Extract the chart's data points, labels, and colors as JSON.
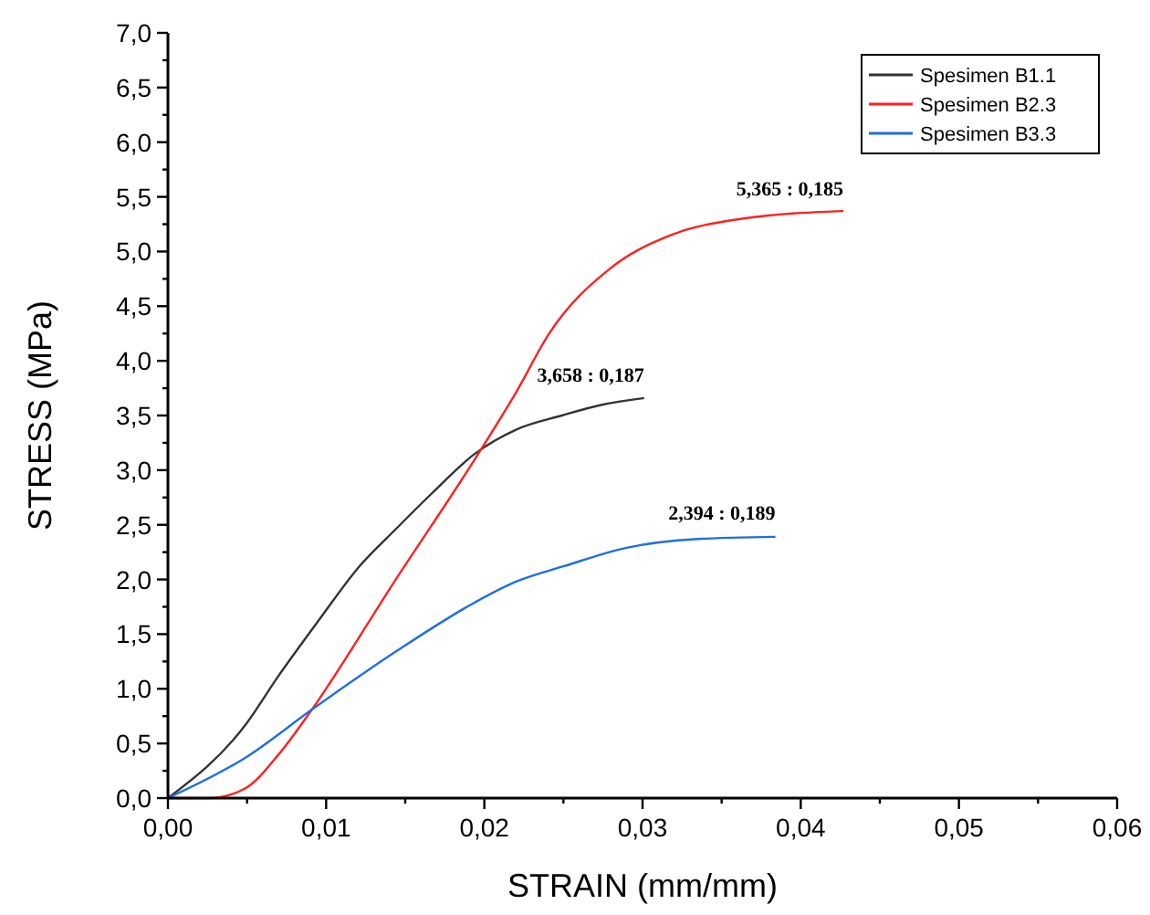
{
  "chart_data": {
    "type": "line",
    "xlabel": "STRAIN (mm/mm)",
    "ylabel": "STRESS (MPa)",
    "xlim": [
      0,
      0.06
    ],
    "ylim": [
      0,
      7
    ],
    "xticks": [
      {
        "value": 0,
        "label": "0,00"
      },
      {
        "value": 0.005,
        "label": null
      },
      {
        "value": 0.01,
        "label": "0,01"
      },
      {
        "value": 0.015,
        "label": null
      },
      {
        "value": 0.02,
        "label": "0,02"
      },
      {
        "value": 0.025,
        "label": null
      },
      {
        "value": 0.03,
        "label": "0,03"
      },
      {
        "value": 0.035,
        "label": null
      },
      {
        "value": 0.04,
        "label": "0,04"
      },
      {
        "value": 0.045,
        "label": null
      },
      {
        "value": 0.05,
        "label": "0,05"
      },
      {
        "value": 0.055,
        "label": null
      },
      {
        "value": 0.06,
        "label": "0,06"
      }
    ],
    "yticks": [
      {
        "value": 0,
        "label": "0,0"
      },
      {
        "value": 0.25,
        "label": null
      },
      {
        "value": 0.5,
        "label": "0,5"
      },
      {
        "value": 0.75,
        "label": null
      },
      {
        "value": 1,
        "label": "1,0"
      },
      {
        "value": 1.25,
        "label": null
      },
      {
        "value": 1.5,
        "label": "1,5"
      },
      {
        "value": 1.75,
        "label": null
      },
      {
        "value": 2,
        "label": "2,0"
      },
      {
        "value": 2.25,
        "label": null
      },
      {
        "value": 2.5,
        "label": "2,5"
      },
      {
        "value": 2.75,
        "label": null
      },
      {
        "value": 3,
        "label": "3,0"
      },
      {
        "value": 3.25,
        "label": null
      },
      {
        "value": 3.5,
        "label": "3,5"
      },
      {
        "value": 3.75,
        "label": null
      },
      {
        "value": 4,
        "label": "4,0"
      },
      {
        "value": 4.25,
        "label": null
      },
      {
        "value": 4.5,
        "label": "4,5"
      },
      {
        "value": 4.75,
        "label": null
      },
      {
        "value": 5,
        "label": "5,0"
      },
      {
        "value": 5.25,
        "label": null
      },
      {
        "value": 5.5,
        "label": "5,5"
      },
      {
        "value": 5.75,
        "label": null
      },
      {
        "value": 6,
        "label": "6,0"
      },
      {
        "value": 6.25,
        "label": null
      },
      {
        "value": 6.5,
        "label": "6,5"
      },
      {
        "value": 6.75,
        "label": null
      },
      {
        "value": 7,
        "label": "7,0"
      }
    ],
    "grid": false,
    "legend": "top right",
    "line_style": "solid",
    "series": [
      {
        "name": "Spesimen B1.1",
        "color": "#333333",
        "x": [
          0,
          0.0049,
          0.007,
          0.0095,
          0.0121,
          0.0144,
          0.0167,
          0.0194,
          0.022,
          0.0249,
          0.0275,
          0.0301
        ],
        "values": [
          0,
          0.67,
          1.12,
          1.62,
          2.12,
          2.46,
          2.79,
          3.15,
          3.37,
          3.5,
          3.6,
          3.66
        ]
      },
      {
        "name": "Spesimen B2.3",
        "color": "#ff2020",
        "x": [
          0,
          0.0026,
          0.0049,
          0.007,
          0.0091,
          0.0144,
          0.0194,
          0.022,
          0.0241,
          0.028,
          0.0318,
          0.0363,
          0.0427
        ],
        "values": [
          0,
          0,
          0.09,
          0.4,
          0.81,
          2.0,
          3.1,
          3.71,
          4.25,
          4.85,
          5.15,
          5.3,
          5.37
        ]
      },
      {
        "name": "Spesimen B3.3",
        "color": "#1f6fe0",
        "x": [
          0,
          0.0049,
          0.0091,
          0.0144,
          0.0194,
          0.022,
          0.025,
          0.029,
          0.0335,
          0.0384
        ],
        "values": [
          0,
          0.37,
          0.81,
          1.34,
          1.79,
          1.98,
          2.12,
          2.29,
          2.37,
          2.39
        ]
      }
    ],
    "annotations": [
      {
        "text": "3,658 : 0,187",
        "x": 0.0301,
        "y": 3.658
      },
      {
        "text": "5,365 : 0,185",
        "x": 0.0427,
        "y": 5.365
      },
      {
        "text": "2,394 : 0,189",
        "x": 0.0384,
        "y": 2.394
      }
    ]
  }
}
